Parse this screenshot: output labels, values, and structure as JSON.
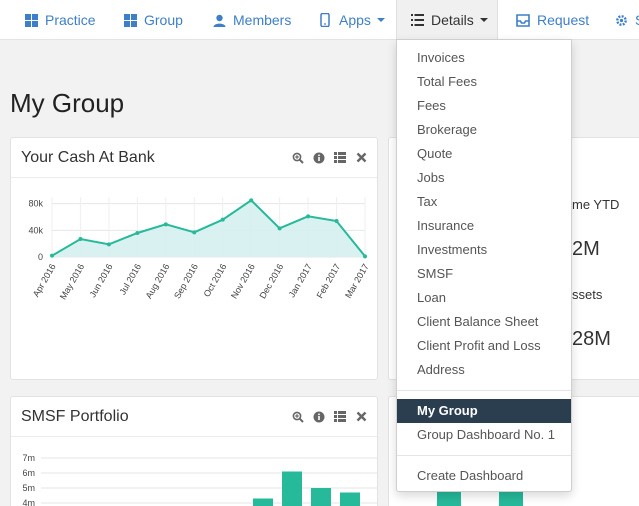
{
  "nav": {
    "items": [
      {
        "label": "Practice",
        "icon": "grid-icon"
      },
      {
        "label": "Group",
        "icon": "grid-icon"
      },
      {
        "label": "Members",
        "icon": "user-icon"
      },
      {
        "label": "Apps",
        "icon": "mobile-icon"
      },
      {
        "label": "Details",
        "icon": "list-icon"
      },
      {
        "label": "Request",
        "icon": "inbox-icon"
      },
      {
        "label": "Se",
        "icon": "gear-icon"
      }
    ],
    "accent": "#3d7fc9"
  },
  "page": {
    "title": "My Group"
  },
  "cash_panel": {
    "title": "Your Cash At Bank",
    "line_color": "#26b99a",
    "fill_color": "#d5efef"
  },
  "chart_data": [
    {
      "type": "area",
      "categories": [
        "Apr 2016",
        "May 2016",
        "Jun 2016",
        "Jul 2016",
        "Aug 2016",
        "Sep 2016",
        "Oct 2016",
        "Nov 2016",
        "Dec 2016",
        "Jan 2017",
        "Feb 2017",
        "Mar 2017"
      ],
      "values": [
        2000,
        27000,
        19000,
        36000,
        49000,
        37000,
        56000,
        85000,
        43000,
        61000,
        54000,
        1000
      ],
      "yticks": [
        "0",
        "40k",
        "80k"
      ],
      "ylim": [
        0,
        90000
      ],
      "grid": true
    },
    {
      "type": "bar",
      "yticks": [
        "4m",
        "5m",
        "6m",
        "7m"
      ],
      "values_m": [
        4.3,
        6.1,
        5.0,
        4.7
      ],
      "bar_color": "#26b99a"
    }
  ],
  "smsf_panel": {
    "title": "SMSF Portfolio"
  },
  "side_panel": {
    "label_1": "me YTD",
    "value_1": "2M",
    "label_2": "ssets",
    "value_2": "28M"
  },
  "details_menu": {
    "items": [
      "Invoices",
      "Total Fees",
      "Fees",
      "Brokerage",
      "Quote",
      "Jobs",
      "Tax",
      "Insurance",
      "Investments",
      "SMSF",
      "Loan",
      "Client Balance Sheet",
      "Client Profit and Loss",
      "Address"
    ],
    "group_items": [
      "My Group",
      "Group Dashboard No. 1"
    ],
    "selected": "My Group",
    "create_label": "Create Dashboard"
  }
}
